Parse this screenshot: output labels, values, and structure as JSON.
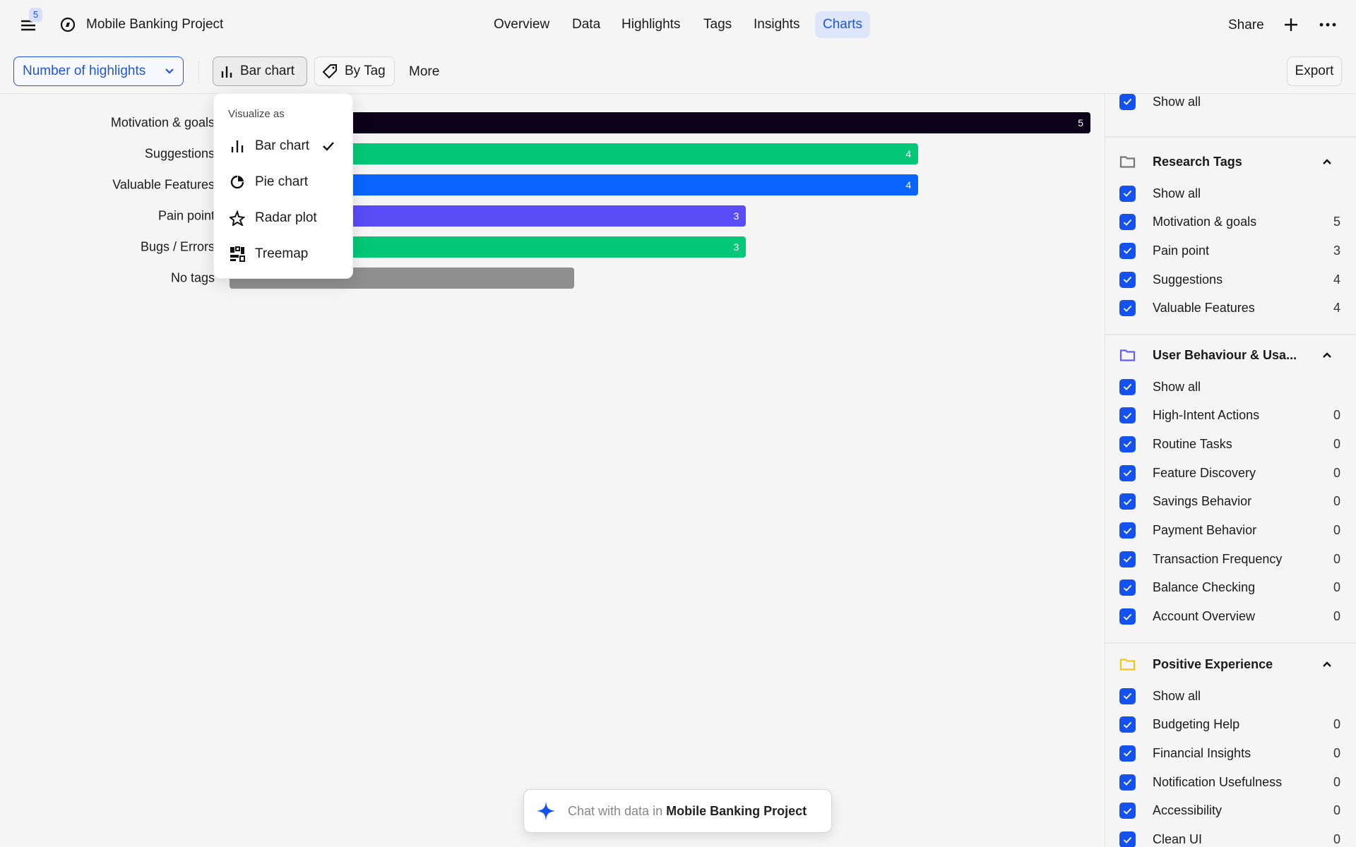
{
  "header": {
    "notification_count": "5",
    "project_title": "Mobile Banking Project",
    "nav": [
      {
        "label": "Overview"
      },
      {
        "label": "Data"
      },
      {
        "label": "Highlights"
      },
      {
        "label": "Tags"
      },
      {
        "label": "Insights"
      },
      {
        "label": "Charts",
        "active": true
      }
    ],
    "share_label": "Share"
  },
  "toolbar": {
    "metric_select": "Number of highlights",
    "chart_type_label": "Bar chart",
    "group_by_label": "By Tag",
    "more_label": "More",
    "export_label": "Export"
  },
  "visualize_menu": {
    "title": "Visualize as",
    "items": [
      {
        "label": "Bar chart",
        "icon": "bar-chart-icon",
        "selected": true
      },
      {
        "label": "Pie chart",
        "icon": "pie-chart-icon"
      },
      {
        "label": "Radar plot",
        "icon": "radar-icon"
      },
      {
        "label": "Treemap",
        "icon": "treemap-icon"
      }
    ]
  },
  "chart_data": {
    "type": "bar",
    "orientation": "horizontal",
    "categories": [
      "Motivation & goals",
      "Suggestions",
      "Valuable Features",
      "Pain point",
      "Bugs / Errors",
      "No tags"
    ],
    "values": [
      5,
      4,
      4,
      3,
      3,
      2
    ],
    "colors": [
      "#0b0118",
      "#04c878",
      "#0a64ff",
      "#5a4cf7",
      "#04c878",
      "#8f8f8f"
    ],
    "data_labels": [
      "5",
      "4",
      "4",
      "3",
      "3",
      ""
    ],
    "xlim": [
      0,
      5
    ],
    "grid": false
  },
  "sidebar": {
    "show_all_label": "Show all",
    "groups": [
      {
        "title": "Research Tags",
        "folder_color": "#777777",
        "show_all": "Show all",
        "items": [
          {
            "label": "Motivation & goals",
            "count": "5"
          },
          {
            "label": "Pain point",
            "count": "3"
          },
          {
            "label": "Suggestions",
            "count": "4"
          },
          {
            "label": "Valuable Features",
            "count": "4"
          }
        ]
      },
      {
        "title": "User Behaviour & Usa...",
        "folder_color": "#6b5cf0",
        "show_all": "Show all",
        "items": [
          {
            "label": "High-Intent Actions",
            "count": "0"
          },
          {
            "label": "Routine Tasks",
            "count": "0"
          },
          {
            "label": "Feature Discovery",
            "count": "0"
          },
          {
            "label": "Savings Behavior",
            "count": "0"
          },
          {
            "label": "Payment Behavior",
            "count": "0"
          },
          {
            "label": "Transaction Frequency",
            "count": "0"
          },
          {
            "label": "Balance Checking",
            "count": "0"
          },
          {
            "label": "Account Overview",
            "count": "0"
          }
        ]
      },
      {
        "title": "Positive Experience",
        "folder_color": "#f5c518",
        "show_all": "Show all",
        "items": [
          {
            "label": "Budgeting Help",
            "count": "0"
          },
          {
            "label": "Financial Insights",
            "count": "0"
          },
          {
            "label": "Notification Usefulness",
            "count": "0"
          },
          {
            "label": "Accessibility",
            "count": "0"
          },
          {
            "label": "Clean UI",
            "count": "0"
          }
        ]
      }
    ]
  },
  "chat": {
    "prefix": "Chat with data in",
    "project": "Mobile Banking Project"
  }
}
